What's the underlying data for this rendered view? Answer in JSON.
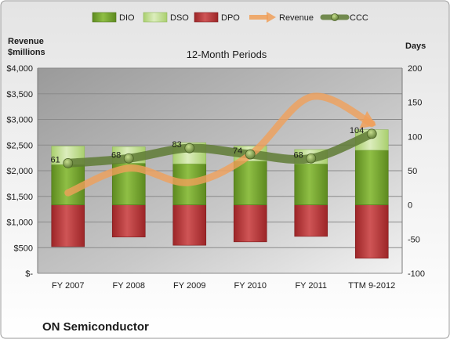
{
  "company": "ON Semiconductor",
  "chart_data": {
    "type": "bar",
    "title": "12-Month Periods",
    "categories": [
      "FY 2007",
      "FY 2008",
      "FY 2009",
      "FY 2010",
      "FY 2011",
      "TTM 9-2012"
    ],
    "left_axis": {
      "title_lines": [
        "Revenue",
        "$millions"
      ],
      "range": [
        0,
        4000
      ],
      "ticks": [
        0,
        500,
        1000,
        1500,
        2000,
        2500,
        3000,
        3500,
        4000
      ],
      "tick_labels": [
        "$-",
        "$500",
        "$1,000",
        "$1,500",
        "$2,000",
        "$2,500",
        "$3,000",
        "$3,500",
        "$4,000"
      ]
    },
    "right_axis": {
      "title": "Days",
      "range": [
        -100,
        200
      ],
      "ticks": [
        -100,
        -50,
        0,
        50,
        100,
        150,
        200
      ],
      "tick_labels": [
        "-100",
        "-50",
        "0",
        "50",
        "100",
        "150",
        "200"
      ]
    },
    "grid": true,
    "legend_position": "top",
    "series": [
      {
        "name": "DIO",
        "axis": "days",
        "kind": "bar",
        "color": "#7cab32",
        "values": [
          59,
          61,
          60,
          64,
          60,
          80
        ]
      },
      {
        "name": "DSO",
        "axis": "days",
        "kind": "bar",
        "color": "#c6e19a",
        "values": [
          27,
          24,
          31,
          22,
          21,
          30
        ]
      },
      {
        "name": "DPO",
        "axis": "days",
        "kind": "bar",
        "color": "#c0393b",
        "values": [
          -61,
          -47,
          -59,
          -54,
          -46,
          -78
        ]
      },
      {
        "name": "Revenue",
        "axis": "revenue",
        "kind": "line",
        "color": "#f0a05a",
        "values": [
          1570,
          2050,
          1770,
          2310,
          3440,
          2920
        ]
      },
      {
        "name": "CCC",
        "axis": "days",
        "kind": "line",
        "color": "#5f7b35",
        "values": [
          61,
          68,
          83,
          74,
          68,
          104
        ]
      }
    ],
    "ccc_labels": [
      "61",
      "68",
      "83",
      "74",
      "68",
      "104"
    ]
  }
}
